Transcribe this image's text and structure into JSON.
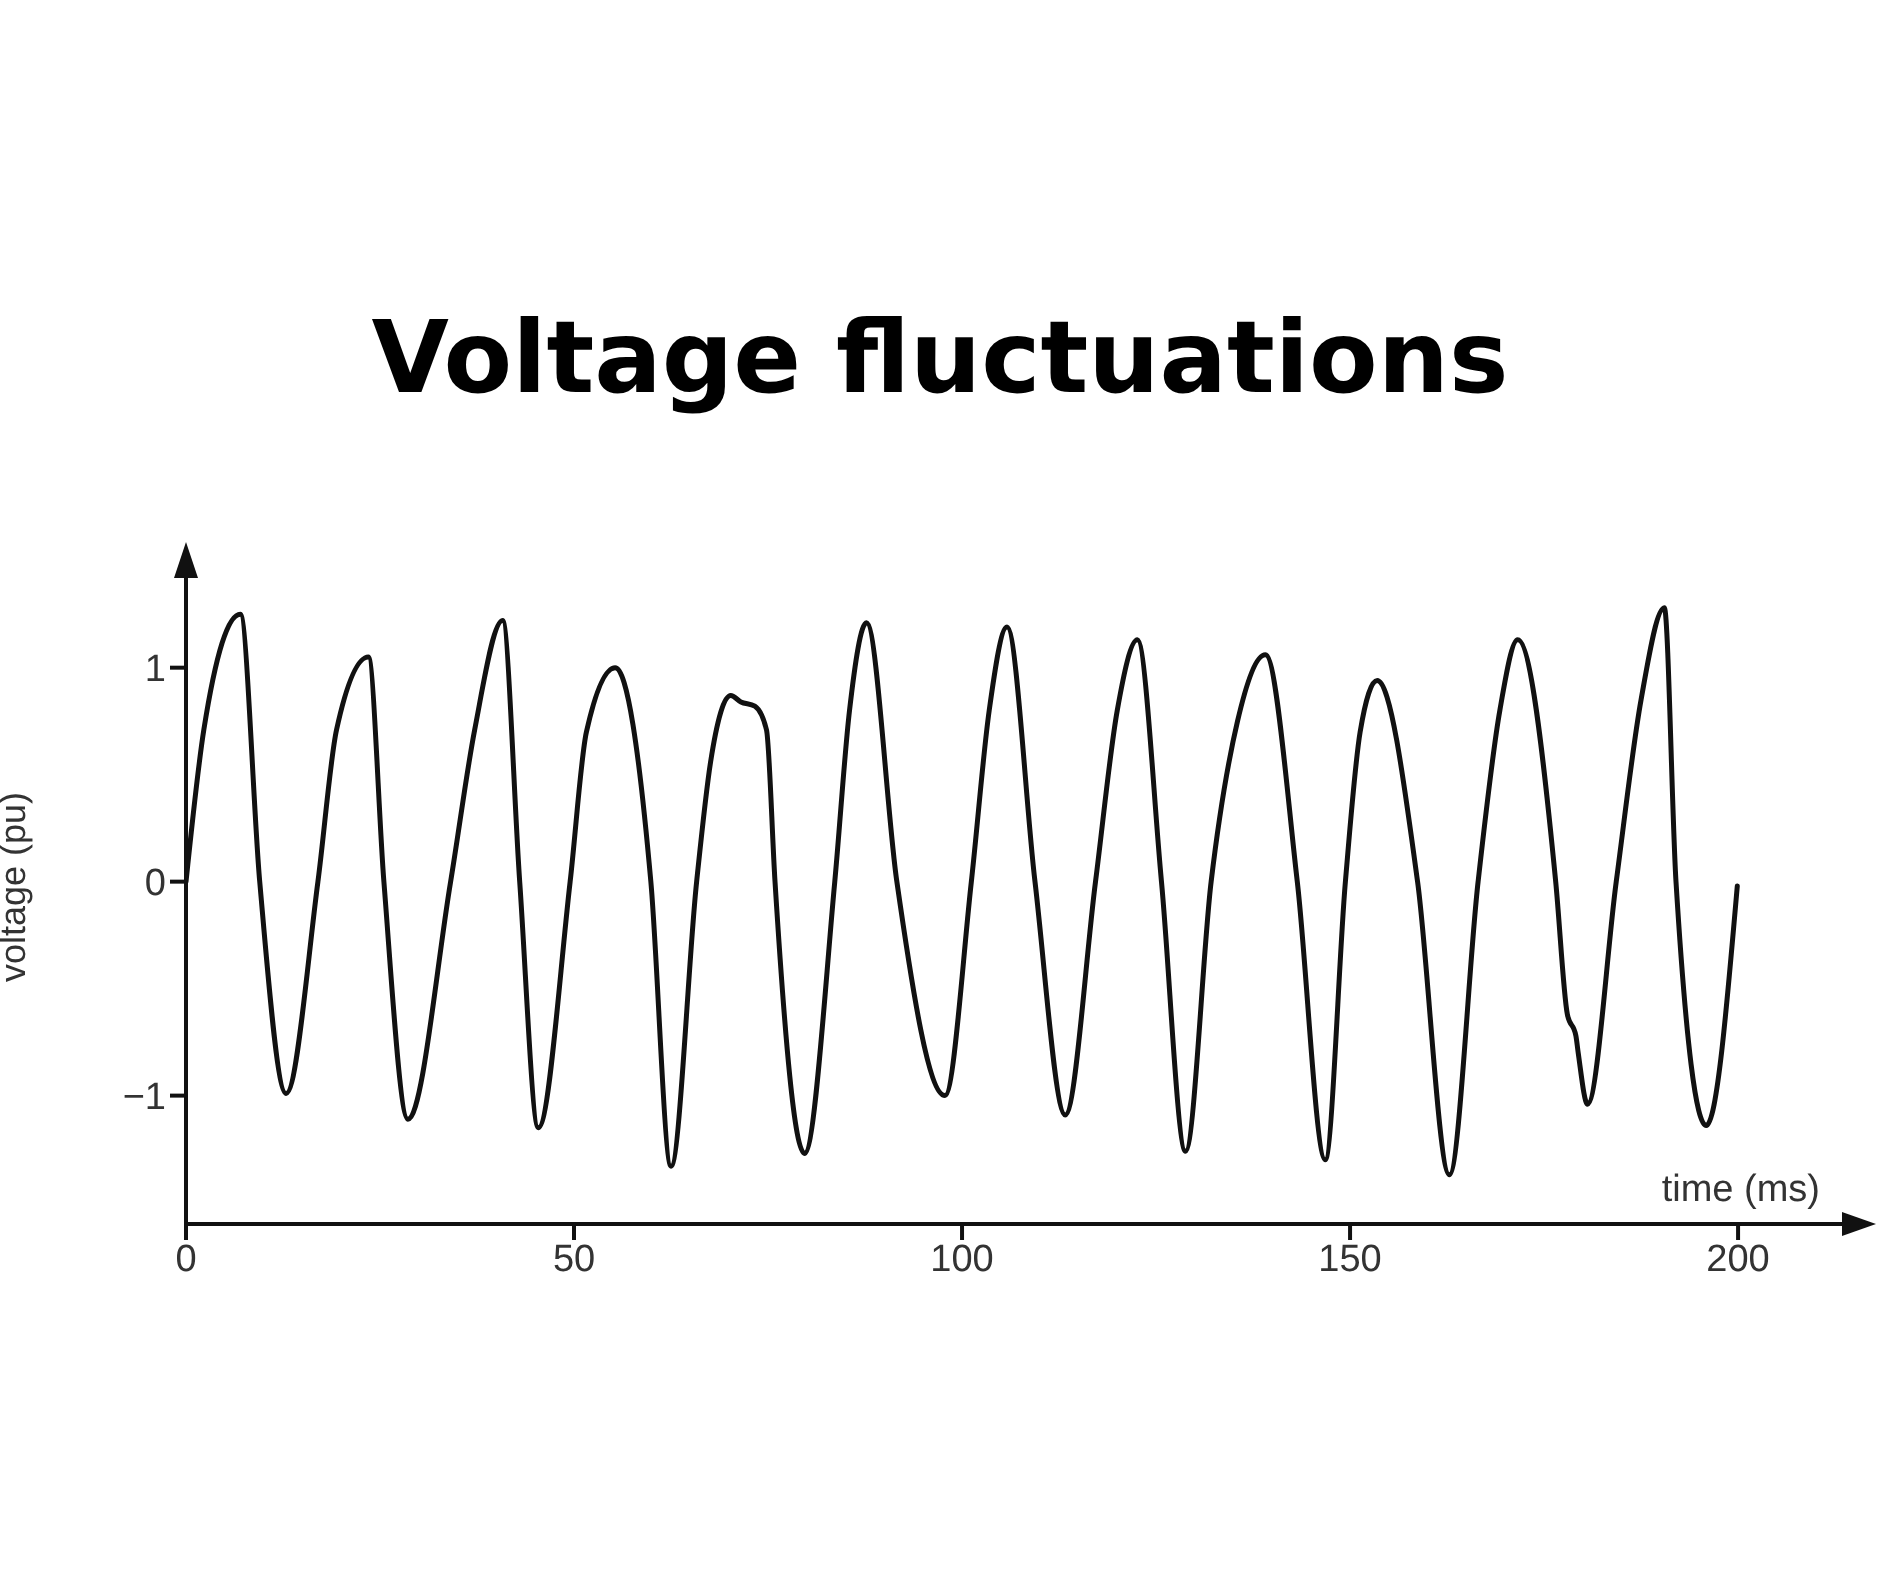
{
  "chart_data": {
    "type": "line",
    "title": "Voltage fluctuations",
    "xlabel": "time (ms)",
    "ylabel": "voltage (pu)",
    "xlim": [
      0,
      217
    ],
    "xticks": [
      0,
      50,
      100,
      150,
      200
    ],
    "ylim": [
      -1.6,
      1.55
    ],
    "yticks": [
      {
        "value": -1,
        "label": "−1"
      },
      0,
      1
    ],
    "grid": false,
    "legend": false,
    "marker": "none",
    "line_style": "solid",
    "series": [
      {
        "color": "#111111",
        "x": [
          0,
          2.3,
          7.0,
          9.5,
          12.9,
          17.0,
          19.4,
          23.5,
          25.5,
          28.6,
          34.1,
          37.2,
          40.8,
          43.0,
          45.4,
          49.5,
          51.6,
          55.3,
          59.9,
          62.5,
          65.8,
          67.6,
          70.2,
          71.5,
          73.3,
          74.8,
          75.9,
          79.7,
          83.6,
          85.5,
          87.7,
          91.6,
          97.8,
          101.2,
          103.5,
          105.8,
          109.4,
          113.3,
          117.2,
          120.0,
          122.6,
          125.7,
          128.8,
          132.1,
          135.5,
          139.1,
          143.2,
          146.8,
          149.4,
          151.3,
          153.5,
          158.7,
          162.8,
          166.5,
          169.3,
          171.6,
          176.5,
          178.0,
          179.1,
          179.4,
          180.6,
          184.3,
          187.5,
          190.5,
          192.0,
          195.9,
          199.9
        ],
        "values": [
          0,
          0.71,
          1.25,
          0,
          -0.99,
          0,
          0.71,
          1.05,
          0,
          -1.11,
          0,
          0.71,
          1.22,
          0,
          -1.15,
          0,
          0.7,
          1.0,
          0,
          -1.33,
          0,
          0.56,
          0.87,
          0.84,
          0.82,
          0.71,
          0,
          -1.27,
          0,
          0.8,
          1.21,
          0,
          -1.0,
          0,
          0.8,
          1.19,
          0,
          -1.09,
          0,
          0.8,
          1.13,
          0,
          -1.26,
          0,
          0.75,
          1.06,
          0,
          -1.3,
          0,
          0.7,
          0.94,
          0,
          -1.37,
          0,
          0.8,
          1.13,
          0,
          -0.62,
          -0.72,
          -0.8,
          -1.04,
          0,
          0.85,
          1.28,
          0,
          -1.14,
          -0.02
        ]
      }
    ]
  }
}
